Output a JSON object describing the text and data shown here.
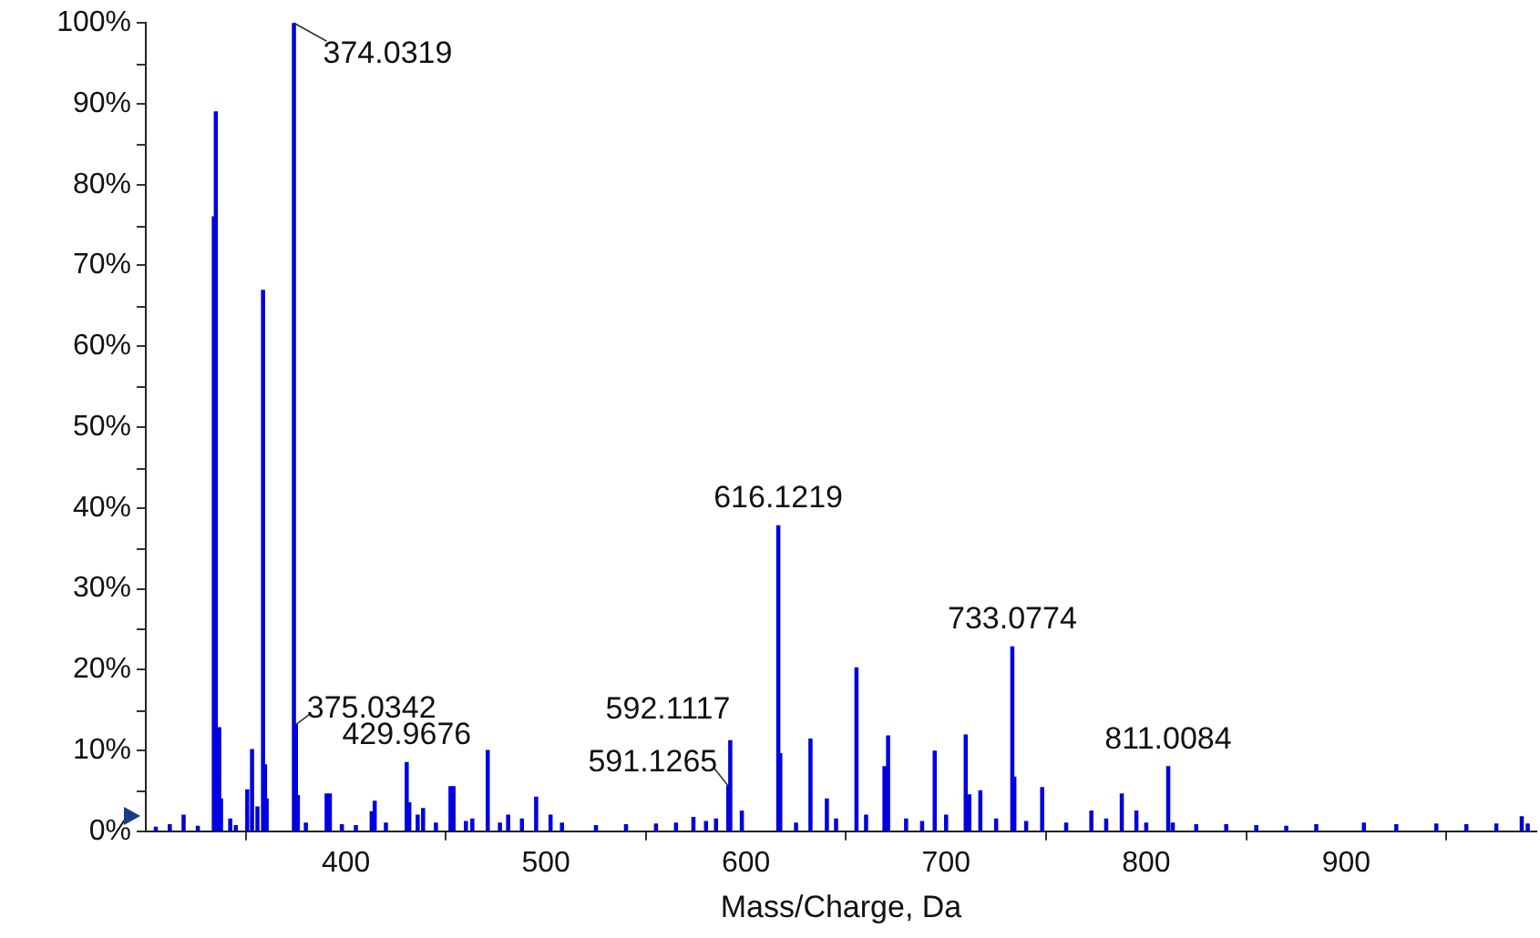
{
  "chart_data": {
    "type": "bar",
    "xlabel": "Mass/Charge, Da",
    "color": "#0000e0",
    "x": [
      305,
      312,
      318.9,
      326,
      334.0,
      335.0,
      336.7,
      337.6,
      342.2,
      345,
      350.7,
      353.1,
      355.8,
      358.6,
      359.6,
      360.4,
      374.0319,
      375.0342,
      376.0,
      380,
      390.4,
      392.0,
      398,
      405,
      412.9,
      414.4,
      420,
      430.4,
      431.7,
      435.9,
      438.6,
      445,
      452.3,
      453.8,
      460,
      463.2,
      470.9,
      477,
      481.1,
      488,
      495.1,
      502.3,
      508,
      525,
      540,
      555,
      565,
      573.7,
      580,
      585,
      591.1265,
      592.1117,
      597.9,
      616.1219,
      617.1,
      625,
      632.2,
      640.4,
      645,
      655.2,
      660,
      669.2,
      671.0,
      680,
      688,
      694.3,
      700,
      709.8,
      711.6,
      717.1,
      725,
      733.0774,
      734.1,
      740,
      748.0,
      760,
      772.6,
      780,
      787.8,
      795.1,
      800,
      811.0084,
      813.3,
      825,
      840,
      855,
      870,
      885,
      908.8,
      925,
      945,
      960,
      975,
      987.7,
      990.7
    ],
    "values": [
      0.5,
      0.8,
      2,
      0.6,
      76,
      89,
      12.8,
      4,
      1.5,
      0.7,
      5.1,
      10.1,
      3,
      66.9,
      8.2,
      4,
      100,
      13.2,
      4.4,
      1,
      4.6,
      4.6,
      0.8,
      0.7,
      2.4,
      3.7,
      1,
      8.5,
      3.5,
      2,
      2.8,
      1,
      5.5,
      5.5,
      1.2,
      1.5,
      10,
      1,
      2,
      1.5,
      4.2,
      2,
      1,
      0.7,
      0.8,
      0.9,
      1,
      1.7,
      1.2,
      1.5,
      5.6,
      11.2,
      2.5,
      37.8,
      9.6,
      1,
      11.4,
      4,
      1.5,
      20.2,
      2,
      8,
      11.8,
      1.5,
      1.2,
      9.9,
      2,
      11.9,
      4.5,
      5,
      1.5,
      22.8,
      6.7,
      1.2,
      5.4,
      1,
      2.5,
      1.5,
      4.6,
      2.5,
      1,
      8,
      1,
      0.8,
      0.8,
      0.7,
      0.6,
      0.8,
      1,
      0.8,
      0.9,
      0.8,
      0.9,
      1.8,
      0.9
    ],
    "xlim": [
      300,
      995
    ],
    "xticks": [
      400,
      500,
      600,
      700,
      800,
      900
    ],
    "ylim": [
      0,
      100
    ],
    "yticks": [
      {
        "value": 0,
        "label": "0%"
      },
      {
        "value": 5,
        "label": null
      },
      {
        "value": 10,
        "label": "10%"
      },
      {
        "value": 15,
        "label": null
      },
      {
        "value": 20,
        "label": "20%"
      },
      {
        "value": 25,
        "label": null
      },
      {
        "value": 30,
        "label": "30%"
      },
      {
        "value": 35,
        "label": null
      },
      {
        "value": 40,
        "label": "40%"
      },
      {
        "value": 45,
        "label": null
      },
      {
        "value": 50,
        "label": "50%"
      },
      {
        "value": 55,
        "label": null
      },
      {
        "value": 60,
        "label": "60%"
      },
      {
        "value": 65,
        "label": null
      },
      {
        "value": 70,
        "label": "70%"
      },
      {
        "value": 75,
        "label": null
      },
      {
        "value": 80,
        "label": "80%"
      },
      {
        "value": 85,
        "label": null
      },
      {
        "value": 90,
        "label": "90%"
      },
      {
        "value": 95,
        "label": null
      },
      {
        "value": 100,
        "label": "100%"
      }
    ],
    "annotations": [
      {
        "text": "374.0319",
        "x": 374.0319,
        "y": 100
      },
      {
        "text": "375.0342",
        "x": 375.0342,
        "y": 13.2
      },
      {
        "text": "429.9676",
        "x": 430.4,
        "y": 8.5
      },
      {
        "text": "592.1117",
        "x": 592.1117,
        "y": 11.2
      },
      {
        "text": "591.1265",
        "x": 591.1265,
        "y": 5.6
      },
      {
        "text": "616.1219",
        "x": 616.1219,
        "y": 37.8
      },
      {
        "text": "733.0774",
        "x": 733.0774,
        "y": 22.8
      },
      {
        "text": "811.0084",
        "x": 811.0084,
        "y": 8
      }
    ],
    "grid": false,
    "legend": false
  }
}
